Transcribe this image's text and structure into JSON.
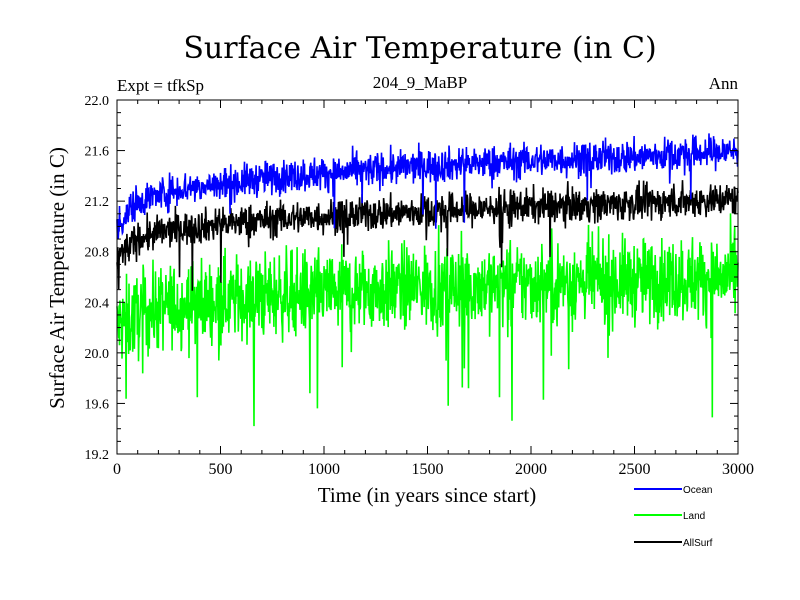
{
  "chart_data": {
    "type": "line",
    "title": "Surface Air Temperature (in C)",
    "subtitle": "204_9_MaBP",
    "experiment_label": "Expt = tfkSp",
    "period_label": "Ann",
    "xlabel": "Time (in years since start)",
    "ylabel": "Surface Air Temperature (in C)",
    "xlim": [
      0,
      3000
    ],
    "ylim": [
      19.2,
      22.0
    ],
    "x_ticks": [
      "0",
      "500",
      "1000",
      "1500",
      "2000",
      "2500",
      "3000"
    ],
    "y_ticks": [
      "19.2",
      "19.6",
      "20.0",
      "20.4",
      "20.8",
      "21.2",
      "21.6",
      "22.0"
    ],
    "grid": false,
    "legend_position": "bottom-right",
    "series": [
      {
        "name": "Ocean",
        "color": "#0000ff",
        "x": [
          0,
          100,
          200,
          300,
          500,
          700,
          1000,
          1500,
          2000,
          2500,
          3000
        ],
        "values": [
          21.0,
          21.2,
          21.25,
          21.3,
          21.33,
          21.38,
          21.42,
          21.48,
          21.52,
          21.55,
          21.6
        ],
        "noise_amplitude": 0.12
      },
      {
        "name": "Land",
        "color": "#00ff00",
        "x": [
          0,
          100,
          200,
          300,
          500,
          700,
          1000,
          1500,
          2000,
          2500,
          3000
        ],
        "values": [
          20.2,
          20.3,
          20.35,
          20.38,
          20.42,
          20.45,
          20.48,
          20.52,
          20.55,
          20.57,
          20.6
        ],
        "noise_amplitude": 0.3
      },
      {
        "name": "AllSurf",
        "color": "#000000",
        "x": [
          0,
          100,
          200,
          300,
          500,
          700,
          1000,
          1500,
          2000,
          2500,
          3000
        ],
        "values": [
          20.75,
          20.9,
          20.95,
          20.98,
          21.02,
          21.05,
          21.08,
          21.12,
          21.16,
          21.18,
          21.22
        ],
        "noise_amplitude": 0.12
      }
    ]
  }
}
